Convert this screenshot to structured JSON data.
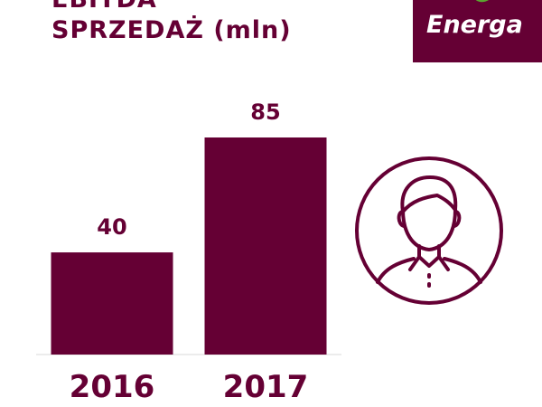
{
  "header": {
    "title_line1": "EBITDA",
    "title_line2": "SPRZEDAŻ (mln)"
  },
  "logo": {
    "text": "Energa",
    "leaf_color": "#5aa52f",
    "icon": "energa-leaf-icon"
  },
  "avatar": {
    "icon": "person-avatar-icon"
  },
  "colors": {
    "brand": "#650034",
    "axis": "#d9d9d9"
  },
  "chart_data": {
    "type": "bar",
    "categories": [
      "2016",
      "2017"
    ],
    "values": [
      40,
      85
    ],
    "title": "EBITDA SPRZEDAŻ (mln)",
    "xlabel": "",
    "ylabel": "",
    "ylim": [
      0,
      85
    ],
    "grid": false,
    "data_labels": [
      "40",
      "85"
    ]
  }
}
